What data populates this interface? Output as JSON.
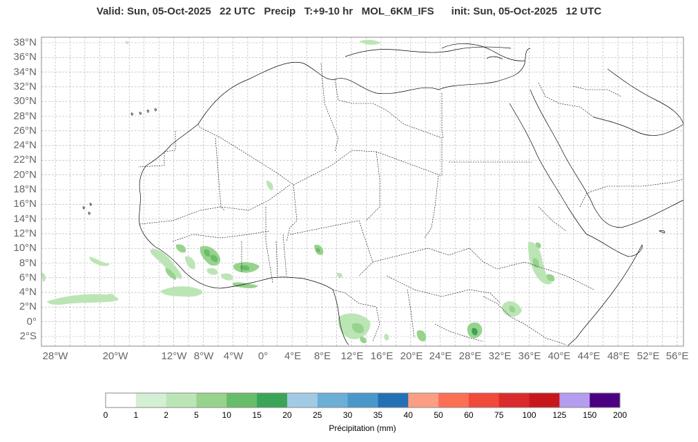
{
  "header": {
    "title": "Valid: Sun, 05-Oct-2025   22 UTC   Precip   T:+9-10 hr   MOL_6KM_IFS      init: Sun, 05-Oct-2025   12 UTC"
  },
  "map": {
    "lat_labels": [
      "38°N",
      "36°N",
      "34°N",
      "32°N",
      "30°N",
      "28°N",
      "26°N",
      "24°N",
      "22°N",
      "20°N",
      "18°N",
      "16°N",
      "14°N",
      "12°N",
      "10°N",
      "8°N",
      "6°N",
      "4°N",
      "2°N",
      "0°",
      "2°S"
    ],
    "lon_labels": [
      "28°W",
      "20°W",
      "12°W",
      "8°W",
      "4°W",
      "0°",
      "4°E",
      "8°E",
      "12°E",
      "16°E",
      "20°E",
      "24°E",
      "28°E",
      "32°E",
      "36°E",
      "40°E",
      "44°E",
      "48°E",
      "52°E",
      "56°E"
    ],
    "colors": {
      "land_line": "#000000",
      "grid": "#b0b0b0",
      "frame": "#888888"
    }
  },
  "colorbar": {
    "title": "Précipitation (mm)",
    "labels": [
      "0",
      "1",
      "2",
      "5",
      "10",
      "15",
      "20",
      "25",
      "30",
      "35",
      "40",
      "50",
      "60",
      "75",
      "100",
      "125",
      "150",
      "200"
    ],
    "colors": [
      "#ffffff",
      "#d4f0d4",
      "#bce5b5",
      "#97d38c",
      "#68bd6a",
      "#3aa457",
      "#a3cae4",
      "#6baed6",
      "#4a97c9",
      "#2370b4",
      "#fc9e84",
      "#fb7055",
      "#f04a3a",
      "#db2a2b",
      "#c7171c",
      "#b49cee",
      "#4b0082"
    ]
  }
}
